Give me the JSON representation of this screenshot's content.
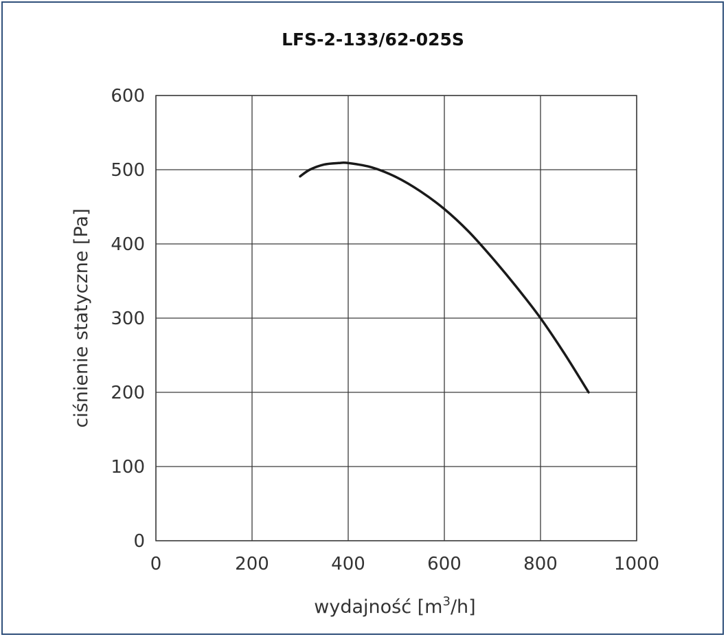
{
  "chart_data": {
    "type": "line",
    "title": "LFS-2-133/62-025S",
    "xlabel": "wydajność [m",
    "xlabel_sup": "3",
    "xlabel_tail": "/h]",
    "ylabel": "ciśnienie statyczne [Pa]",
    "xlim": [
      0,
      1000
    ],
    "ylim": [
      0,
      600
    ],
    "xticks": [
      0,
      200,
      400,
      600,
      800,
      1000
    ],
    "yticks": [
      0,
      100,
      200,
      300,
      400,
      500,
      600
    ],
    "grid": true,
    "line_color": "#1a1a1a",
    "series": [
      {
        "x": [
          300,
          320,
          350,
          380,
          400,
          450,
          500,
          550,
          600,
          650,
          700,
          750,
          800,
          850,
          900
        ],
        "y": [
          491,
          500,
          507,
          509,
          509,
          503,
          490,
          471,
          447,
          417,
          381,
          342,
          300,
          252,
          200
        ]
      }
    ]
  }
}
